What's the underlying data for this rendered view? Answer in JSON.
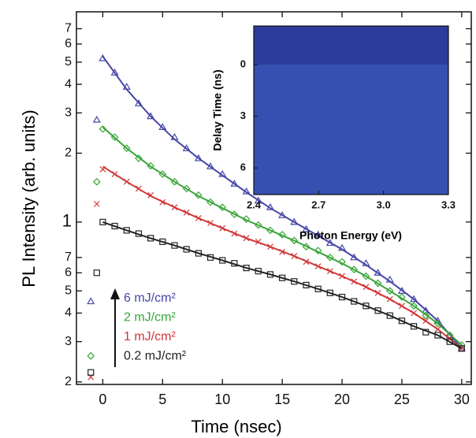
{
  "chart_data": [
    {
      "type": "scatter",
      "log_y": true,
      "grid": false,
      "x_label": "Time (nsec)",
      "y_label": "PL Intensity (arb. units)",
      "xlim": [
        -2.2,
        30.8
      ],
      "ylim": [
        0.195,
        8.3
      ],
      "xticks": [
        0,
        5,
        10,
        15,
        20,
        25,
        30
      ],
      "yticks": [
        {
          "value": 0.2,
          "label": "2"
        },
        {
          "value": 0.3,
          "label": "3"
        },
        {
          "value": 0.4,
          "label": "4"
        },
        {
          "value": 0.5,
          "label": "5"
        },
        {
          "value": 0.6,
          "label": "6"
        },
        {
          "value": 0.7,
          "label": "7"
        },
        1,
        2,
        3,
        4,
        5,
        6,
        7
      ],
      "x": [
        -1,
        -0.5,
        0,
        1,
        2,
        3,
        4,
        5,
        6,
        7,
        8,
        9,
        10,
        11,
        12,
        13,
        14,
        15,
        16,
        17,
        18,
        19,
        20,
        21,
        22,
        23,
        24,
        25,
        26,
        27,
        28,
        29,
        30
      ],
      "fit_x": [
        0,
        2,
        4,
        6,
        8,
        10,
        12,
        14,
        16,
        18,
        20,
        22,
        24,
        26,
        28,
        30
      ],
      "series": [
        {
          "name": "6 mJ/cm²",
          "color": "#4646a8",
          "marker": "triangle",
          "values": [
            0.45,
            2.8,
            5.2,
            4.5,
            3.9,
            3.3,
            2.9,
            2.6,
            2.35,
            2.1,
            1.9,
            1.75,
            1.62,
            1.47,
            1.36,
            1.24,
            1.16,
            1.07,
            1.0,
            0.93,
            0.88,
            0.81,
            0.77,
            0.7,
            0.66,
            0.6,
            0.56,
            0.5,
            0.46,
            0.41,
            0.37,
            0.32,
            0.28
          ],
          "fit_values": [
            5.3,
            3.8,
            2.9,
            2.3,
            1.9,
            1.6,
            1.35,
            1.15,
            1.0,
            0.87,
            0.76,
            0.65,
            0.55,
            0.46,
            0.37,
            0.28
          ]
        },
        {
          "name": "2 mJ/cm²",
          "color": "#38a638",
          "marker": "diamond",
          "values": [
            0.26,
            1.5,
            2.55,
            2.35,
            2.1,
            1.9,
            1.76,
            1.62,
            1.5,
            1.4,
            1.31,
            1.22,
            1.16,
            1.08,
            1.03,
            0.97,
            0.92,
            0.88,
            0.83,
            0.78,
            0.75,
            0.7,
            0.67,
            0.62,
            0.58,
            0.54,
            0.5,
            0.47,
            0.43,
            0.39,
            0.36,
            0.32,
            0.29
          ],
          "fit_values": [
            2.6,
            2.1,
            1.75,
            1.5,
            1.3,
            1.15,
            1.02,
            0.92,
            0.83,
            0.74,
            0.66,
            0.58,
            0.5,
            0.43,
            0.36,
            0.29
          ]
        },
        {
          "name": "1 mJ/cm²",
          "color": "#d23636",
          "marker": "cross",
          "values": [
            0.21,
            1.2,
            1.7,
            1.62,
            1.5,
            1.4,
            1.31,
            1.22,
            1.16,
            1.1,
            1.04,
            0.99,
            0.94,
            0.89,
            0.85,
            0.82,
            0.78,
            0.74,
            0.71,
            0.67,
            0.64,
            0.61,
            0.58,
            0.55,
            0.52,
            0.49,
            0.46,
            0.43,
            0.4,
            0.37,
            0.34,
            0.31,
            0.28
          ],
          "fit_values": [
            1.75,
            1.5,
            1.3,
            1.16,
            1.04,
            0.94,
            0.85,
            0.78,
            0.71,
            0.64,
            0.58,
            0.52,
            0.46,
            0.4,
            0.34,
            0.28
          ]
        },
        {
          "name": "0.2 mJ/cm²",
          "color": "#222222",
          "marker": "square",
          "values": [
            0.22,
            0.6,
            1.0,
            0.96,
            0.92,
            0.89,
            0.85,
            0.82,
            0.79,
            0.76,
            0.73,
            0.7,
            0.68,
            0.66,
            0.63,
            0.61,
            0.59,
            0.57,
            0.55,
            0.53,
            0.51,
            0.49,
            0.47,
            0.45,
            0.43,
            0.41,
            0.39,
            0.37,
            0.35,
            0.33,
            0.32,
            0.3,
            0.28
          ],
          "fit_values": [
            1.0,
            0.92,
            0.85,
            0.79,
            0.73,
            0.68,
            0.63,
            0.59,
            0.55,
            0.51,
            0.47,
            0.43,
            0.39,
            0.35,
            0.32,
            0.28
          ]
        }
      ]
    },
    {
      "type": "heatmap",
      "x_label": "Photon Energy (eV)",
      "y_label": "Delay Time (ns)",
      "xlim": [
        2.4,
        3.3
      ],
      "ylim": [
        -2.25,
        7.55
      ],
      "y_inverted": true,
      "xticks": [
        2.4,
        2.7,
        {
          "value": 3,
          "label": "3.0"
        },
        3.3
      ],
      "yticks": [
        0,
        3,
        6
      ]
    }
  ]
}
